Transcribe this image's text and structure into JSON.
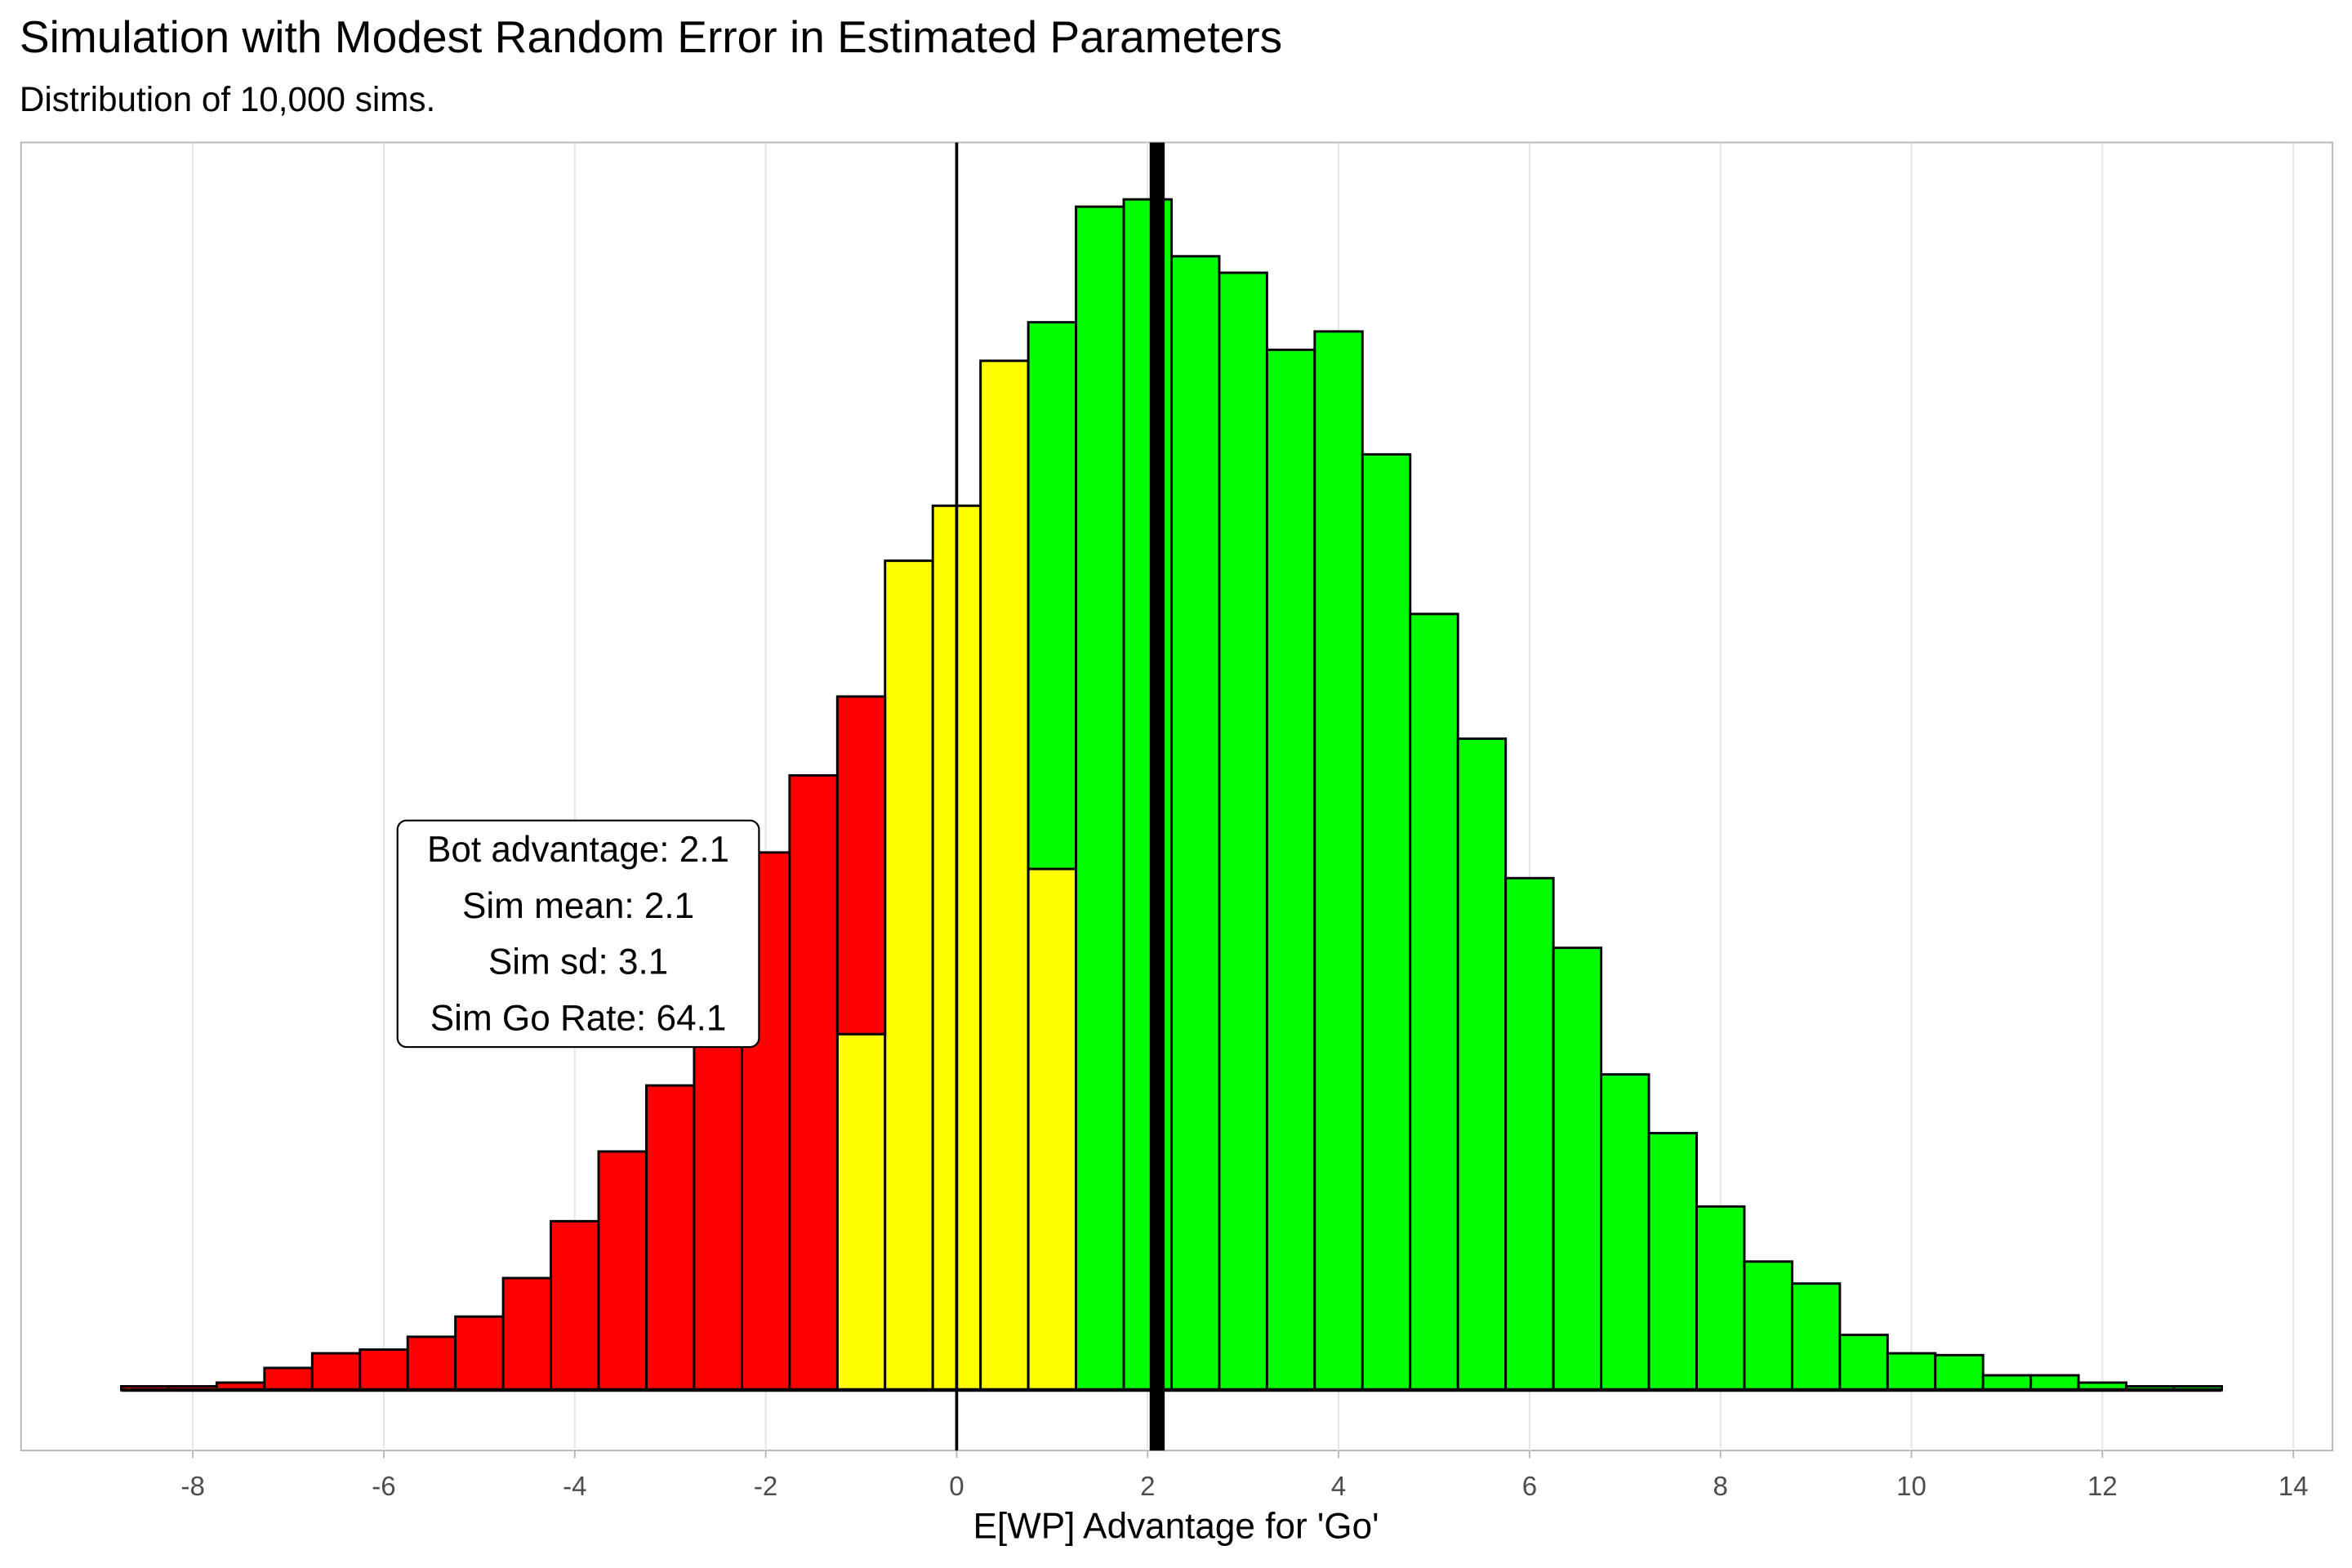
{
  "chart_data": {
    "type": "histogram",
    "title": "Simulation with Modest Random Error in Estimated Parameters",
    "subtitle": "Distribution of 10,000 sims.",
    "x_label": "E[WP] Advantage for 'Go'",
    "bins": [
      -8.75,
      -8.25,
      -7.75,
      -7.25,
      -6.75,
      -6.25,
      -5.75,
      -5.25,
      -4.75,
      -4.25,
      -3.75,
      -3.25,
      -2.75,
      -2.25,
      -1.75,
      -1.25,
      -0.75,
      -0.25,
      0.25,
      0.75,
      1.25,
      1.75,
      2.25,
      2.75,
      3.25,
      3.75,
      4.25,
      4.75,
      5.25,
      5.75,
      6.25,
      6.75,
      7.25,
      7.75,
      8.25,
      8.75,
      9.25,
      9.75,
      10.25,
      10.75,
      11.25,
      11.75,
      12.25,
      12.75,
      13.25
    ],
    "series": [
      {
        "color": "#ffff00",
        "values": [
          0,
          0,
          0,
          0,
          0,
          0,
          0,
          0,
          0,
          0,
          0,
          0,
          0,
          0,
          0,
          194,
          452,
          482,
          561,
          284,
          0,
          0,
          0,
          0,
          0,
          0,
          0,
          0,
          0,
          0,
          0,
          0,
          0,
          0,
          0,
          0,
          0,
          0,
          0,
          0,
          0,
          0,
          0,
          0
        ]
      },
      {
        "color": "#ff0000",
        "values": [
          2,
          2,
          4,
          12,
          20,
          22,
          29,
          40,
          61,
          92,
          130,
          166,
          235,
          293,
          335,
          184,
          0,
          0,
          0,
          0,
          0,
          0,
          0,
          0,
          0,
          0,
          0,
          0,
          0,
          0,
          0,
          0,
          0,
          0,
          0,
          0,
          0,
          0,
          0,
          0,
          0,
          0,
          0,
          0
        ]
      },
      {
        "color": "#00ff00",
        "values": [
          0,
          0,
          0,
          0,
          0,
          0,
          0,
          0,
          0,
          0,
          0,
          0,
          0,
          0,
          0,
          0,
          0,
          0,
          0,
          298,
          645,
          649,
          618,
          609,
          567,
          577,
          510,
          423,
          355,
          279,
          241,
          172,
          140,
          100,
          70,
          58,
          30,
          20,
          19,
          8,
          8,
          4,
          2,
          2
        ]
      }
    ],
    "xlim": [
      -9.8,
      14.41
    ],
    "ylim": [
      -33,
      680
    ],
    "xticks": [
      -8,
      -6,
      -4,
      -2,
      0,
      2,
      4,
      6,
      8,
      10,
      12,
      14
    ],
    "grid": true,
    "reference_lines": [
      {
        "x": 0,
        "style": "thin"
      },
      {
        "x": 2.1,
        "style": "thick"
      }
    ],
    "annotation": [
      "Bot advantage: 2.1",
      "Sim mean: 2.1",
      "Sim sd: 3.1",
      "Sim Go Rate: 64.1"
    ]
  }
}
